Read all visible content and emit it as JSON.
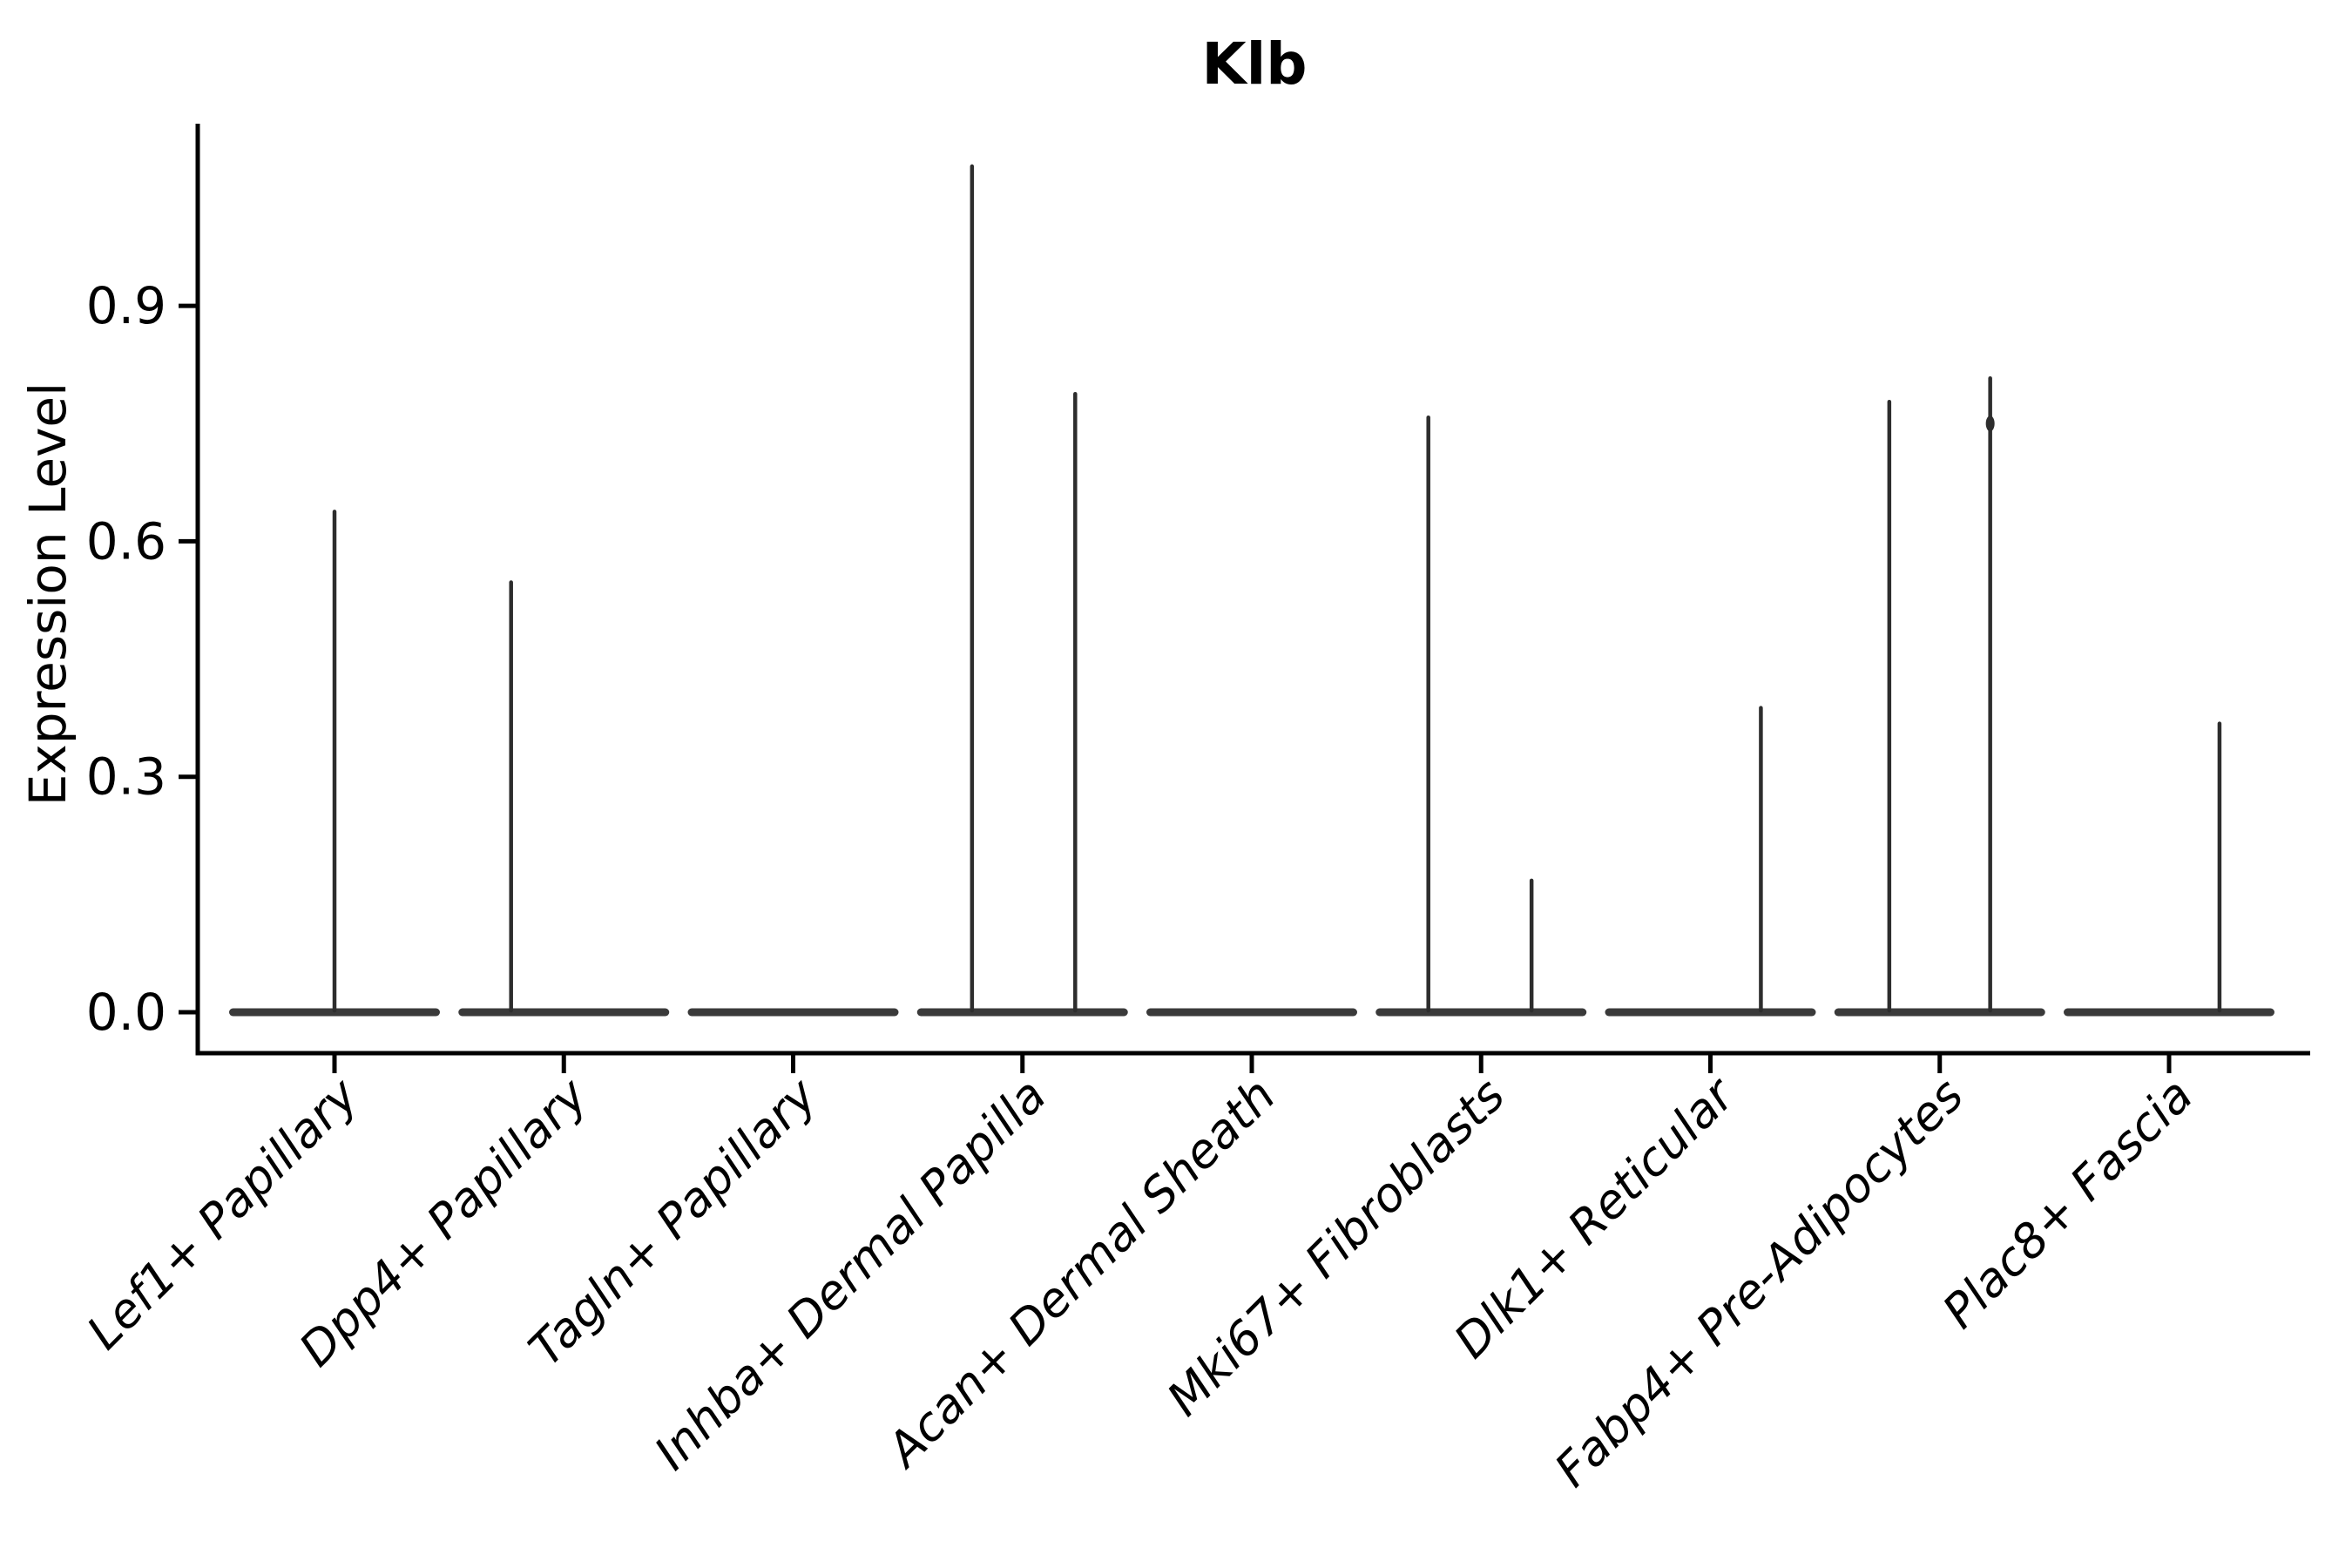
{
  "chart_data": {
    "type": "violin",
    "title": "Klb",
    "ylabel": "Expression Level",
    "xlabel": "",
    "grid": false,
    "legend": null,
    "background": "#ffffff",
    "yticks": [
      "0.0",
      "0.3",
      "0.6",
      "0.9"
    ],
    "ylim": [
      -0.05,
      1.18
    ],
    "layout_hint": "left and bottom spines only, x labels rotated 45deg right-anchored, most cells at 0 so violins collapse to flat bars with thin density spikes",
    "categories": [
      "Lef1+ Papillary",
      "Dpp4+ Papillary",
      "Tagln+ Papillary",
      "Inhba+ Dermal Papilla",
      "Acan+ Dermal Sheath",
      "Mki67+ Fibroblasts",
      "Dlk1+ Reticular",
      "Fabp4+ Pre-Adipocytes",
      "Plac8+ Fascia"
    ],
    "violins": [
      {
        "category": "Lef1+ Papillary",
        "zero_body": true,
        "spikes": [
          {
            "x_offset_frac": 0.0,
            "max": 0.64
          }
        ]
      },
      {
        "category": "Dpp4+ Papillary",
        "zero_body": true,
        "spikes": [
          {
            "x_offset_frac": -0.23,
            "max": 0.55
          }
        ]
      },
      {
        "category": "Tagln+ Papillary",
        "zero_body": true,
        "spikes": []
      },
      {
        "category": "Inhba+ Dermal Papilla",
        "zero_body": true,
        "spikes": [
          {
            "x_offset_frac": -0.22,
            "max": 1.08
          },
          {
            "x_offset_frac": 0.23,
            "max": 0.79
          }
        ]
      },
      {
        "category": "Acan+ Dermal Sheath",
        "zero_body": true,
        "spikes": []
      },
      {
        "category": "Mki67+ Fibroblasts",
        "zero_body": true,
        "spikes": [
          {
            "x_offset_frac": -0.23,
            "max": 0.76
          },
          {
            "x_offset_frac": 0.22,
            "max": 0.17
          }
        ]
      },
      {
        "category": "Dlk1+ Reticular",
        "zero_body": true,
        "spikes": [
          {
            "x_offset_frac": 0.22,
            "max": 0.39
          }
        ]
      },
      {
        "category": "Fabp4+ Pre-Adipocytes",
        "zero_body": true,
        "spikes": [
          {
            "x_offset_frac": -0.22,
            "max": 0.78
          },
          {
            "x_offset_frac": 0.22,
            "max": 0.81,
            "bump_at": 0.75
          }
        ]
      },
      {
        "category": "Plac8+ Fascia",
        "zero_body": true,
        "spikes": [
          {
            "x_offset_frac": 0.22,
            "max": 0.37
          }
        ]
      }
    ],
    "colors": {
      "axis": "#000000",
      "text": "#000000",
      "violin_line": "#2d2d2d",
      "violin_body": "#3a3a3a",
      "background": "#ffffff"
    }
  }
}
